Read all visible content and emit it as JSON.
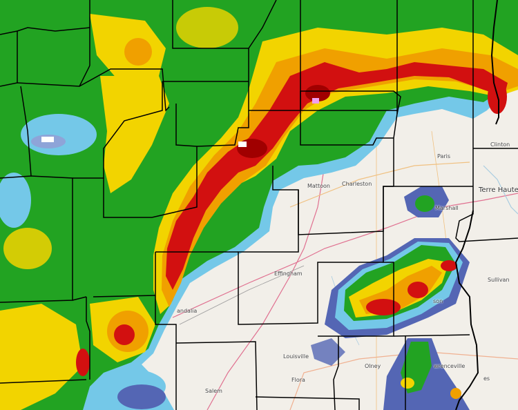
{
  "map": {
    "type": "weather radar reflectivity overlay",
    "colors": {
      "base": "#f2efe9",
      "light_blue": "#74c8e8",
      "dark_blue": "#5466b4",
      "green": "#22a322",
      "dark_green": "#137a13",
      "yellow": "#f2d400",
      "orange": "#f0a000",
      "red": "#d21010",
      "dark_red": "#a00000",
      "magenta": "#f0a0f0",
      "county_border": "#000000"
    },
    "places": [
      {
        "name": "Mattoon"
      },
      {
        "name": "Charleston"
      },
      {
        "name": "Paris"
      },
      {
        "name": "Clinton"
      },
      {
        "name": "Terre Haute"
      },
      {
        "name": "Marshall"
      },
      {
        "name": "Effingham"
      },
      {
        "name": "Sullivan"
      },
      {
        "name": "andalia"
      },
      {
        "name": "son"
      },
      {
        "name": "Louisville"
      },
      {
        "name": "Olney"
      },
      {
        "name": "Flora"
      },
      {
        "name": "wrenceville"
      },
      {
        "name": "es"
      },
      {
        "name": "Salem"
      }
    ]
  }
}
